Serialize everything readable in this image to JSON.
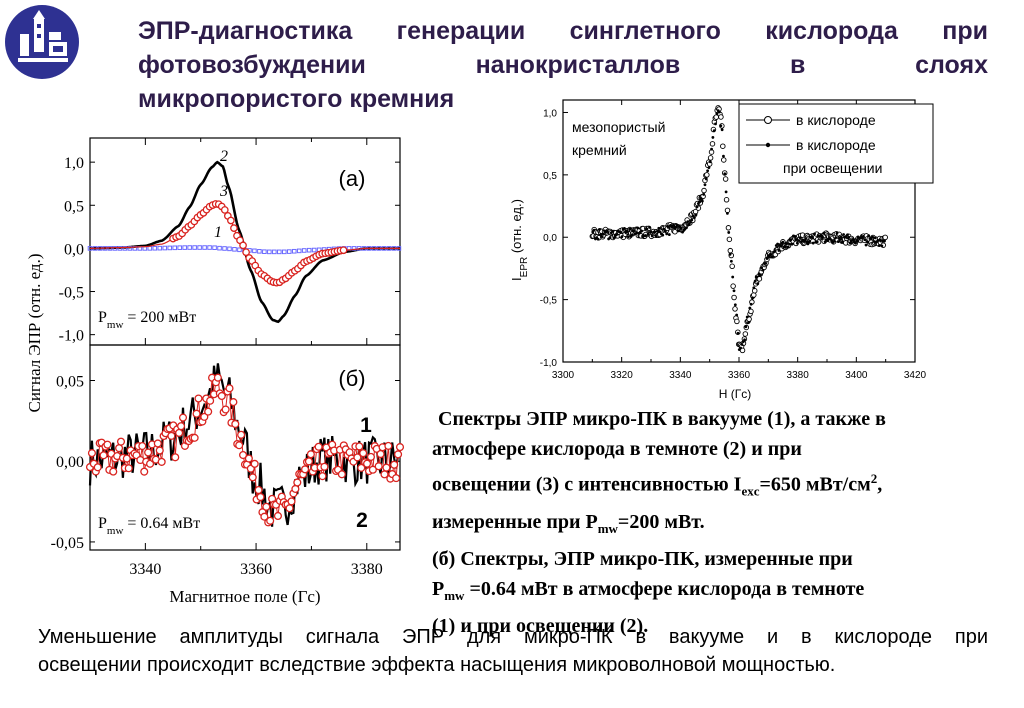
{
  "title_lines": [
    "ЭПР-диагностика генерации синглетного кислорода при",
    "фотовозбуждении нанокристаллов в слоях",
    "микропористого кремния"
  ],
  "colors": {
    "title": "#2e1d4a",
    "logo_bg": "#2e3192",
    "vacuum_series": "#000000",
    "dark_oxygen_series": "#6a6aff",
    "illuminated_series": "#d9231f"
  },
  "icons": {
    "logo": "university-emblem-icon"
  },
  "chart_data": [
    {
      "type": "line",
      "panel_label": "(а)",
      "ylabel": "Сигнал ЭПР (отн. ед.)",
      "xlim": [
        3330,
        3386
      ],
      "ylim": [
        -1.12,
        1.28
      ],
      "yticks": [
        1.0,
        0.5,
        0.0,
        -0.5,
        -1.0
      ],
      "ytick_labels": [
        "1,0",
        "0,5",
        "0,0",
        "-0,5",
        "-1,0"
      ],
      "annotation_parts": [
        "P",
        "mw",
        " = 200 мВт"
      ],
      "series": [
        {
          "label": "2",
          "x": [
            3330,
            3336,
            3340,
            3343,
            3346,
            3348,
            3350,
            3352,
            3353,
            3354,
            3355,
            3357,
            3359,
            3361,
            3363,
            3364,
            3365,
            3367,
            3369,
            3372,
            3376,
            3380,
            3386
          ],
          "y": [
            0.0,
            0.01,
            0.03,
            0.09,
            0.26,
            0.48,
            0.74,
            0.94,
            1.0,
            0.95,
            0.72,
            0.2,
            -0.25,
            -0.62,
            -0.83,
            -0.85,
            -0.78,
            -0.55,
            -0.32,
            -0.14,
            -0.04,
            0.0,
            0.0
          ]
        },
        {
          "label": "3",
          "x": [
            3330,
            3336,
            3340,
            3343,
            3346,
            3348,
            3350,
            3352,
            3353,
            3354,
            3355,
            3357,
            3359,
            3361,
            3363,
            3364,
            3365,
            3367,
            3369,
            3372,
            3376,
            3380,
            3386
          ],
          "y": [
            0.0,
            0.01,
            0.02,
            0.05,
            0.14,
            0.26,
            0.39,
            0.5,
            0.52,
            0.48,
            0.37,
            0.1,
            -0.13,
            -0.3,
            -0.39,
            -0.4,
            -0.36,
            -0.26,
            -0.15,
            -0.06,
            -0.02,
            0.0,
            0.0
          ]
        },
        {
          "label": "1",
          "x": [
            3330,
            3340,
            3348,
            3352,
            3354,
            3358,
            3362,
            3365,
            3370,
            3376,
            3386
          ],
          "y": [
            0.0,
            0.0,
            0.01,
            0.01,
            0.0,
            -0.02,
            -0.04,
            -0.04,
            -0.02,
            0.0,
            0.0
          ]
        }
      ]
    },
    {
      "type": "line",
      "panel_label": "(б)",
      "xlabel": "Магнитное поле (Гс)",
      "xlim": [
        3330,
        3386
      ],
      "ylim": [
        -0.055,
        0.072
      ],
      "xticks": [
        3340,
        3360,
        3380
      ],
      "yticks": [
        0.05,
        0.0,
        -0.05
      ],
      "ytick_labels": [
        "0,05",
        "0,00",
        "-0,05"
      ],
      "annotation_parts": [
        "P",
        "mw",
        " = 0.64 мВт"
      ],
      "series": [
        {
          "label": "1",
          "x": [
            3330,
            3340,
            3345,
            3348,
            3351,
            3353,
            3355,
            3357,
            3360,
            3363,
            3365,
            3368,
            3372,
            3378,
            3386
          ],
          "y": [
            0.0,
            0.005,
            0.014,
            0.025,
            0.038,
            0.05,
            0.04,
            0.02,
            -0.012,
            -0.03,
            -0.028,
            -0.01,
            0.002,
            0.0,
            0.0
          ]
        },
        {
          "label": "2",
          "x": [
            3330,
            3340,
            3345,
            3348,
            3351,
            3353,
            3355,
            3357,
            3360,
            3363,
            3365,
            3368,
            3372,
            3378,
            3386
          ],
          "y": [
            0.0,
            0.004,
            0.012,
            0.022,
            0.035,
            0.046,
            0.036,
            0.016,
            -0.014,
            -0.033,
            -0.032,
            -0.012,
            0.0,
            0.001,
            0.0
          ]
        }
      ]
    },
    {
      "type": "scatter",
      "panel_note": [
        "мезопористый",
        "кремний"
      ],
      "xlabel": "H (Гс)",
      "ylabel_parts": [
        "I",
        "EPR",
        " (отн. ед.)"
      ],
      "xlim": [
        3300,
        3420
      ],
      "ylim": [
        -1.0,
        1.1
      ],
      "xticks": [
        3300,
        3320,
        3340,
        3360,
        3380,
        3400,
        3420
      ],
      "yticks": [
        1.0,
        0.5,
        0.0,
        -0.5,
        -1.0
      ],
      "ytick_labels": [
        "1,0",
        "0,5",
        "0,0",
        "-0,5",
        "-1,0"
      ],
      "legend_position": "top-right",
      "series": [
        {
          "name": "в кислороде",
          "marker": "open-circle",
          "x": [
            3310,
            3320,
            3330,
            3340,
            3344,
            3347,
            3350,
            3352,
            3353,
            3354,
            3355,
            3357,
            3359,
            3360,
            3361,
            3363,
            3366,
            3370,
            3375,
            3380,
            3390,
            3400,
            3410
          ],
          "y": [
            0.03,
            0.03,
            0.04,
            0.08,
            0.16,
            0.3,
            0.6,
            0.95,
            1.02,
            0.92,
            0.55,
            -0.1,
            -0.62,
            -0.88,
            -0.9,
            -0.68,
            -0.36,
            -0.15,
            -0.06,
            -0.02,
            0.0,
            -0.02,
            -0.03
          ]
        },
        {
          "name": "в кислороде при освещении",
          "marker": "filled-dot",
          "x": [
            3310,
            3320,
            3330,
            3340,
            3344,
            3347,
            3350,
            3352,
            3353,
            3354,
            3355,
            3357,
            3359,
            3360,
            3361,
            3363,
            3366,
            3370,
            3375,
            3380,
            3390,
            3400,
            3410
          ],
          "y": [
            0.02,
            0.03,
            0.04,
            0.07,
            0.15,
            0.28,
            0.58,
            0.92,
            1.0,
            0.9,
            0.52,
            -0.12,
            -0.6,
            -0.86,
            -0.88,
            -0.66,
            -0.35,
            -0.14,
            -0.05,
            -0.02,
            0.0,
            -0.02,
            -0.03
          ]
        }
      ]
    }
  ],
  "caption_lines": [
    {
      "parts": [
        "Спектры ЭПР микро-ПК в вакууме (1), а также в"
      ]
    },
    {
      "parts": [
        "атмосфере кислорода в темноте (2) и при"
      ]
    },
    {
      "parts": [
        "освещении (3) с интенсивностью I",
        "exc",
        "=650 мВт/см",
        "2",
        ","
      ]
    },
    {
      "parts": [
        "измеренные при P",
        "mw",
        "=200 мВт."
      ]
    },
    {
      "parts": [
        "(б) Спектры, ЭПР микро-ПК, измеренные при"
      ]
    },
    {
      "parts": [
        "P",
        "mw",
        " =0.64 мВт в атмосфере кислорода в темноте"
      ]
    },
    {
      "parts": [
        "(1) и при освещении (2)."
      ]
    }
  ],
  "conclusion_lines": [
    "Уменьшение амплитуды сигнала ЭПР для микро-ПК в вакууме и в кислороде при",
    "освещении происходит вследствие эффекта насыщения микроволновой мощностью."
  ]
}
